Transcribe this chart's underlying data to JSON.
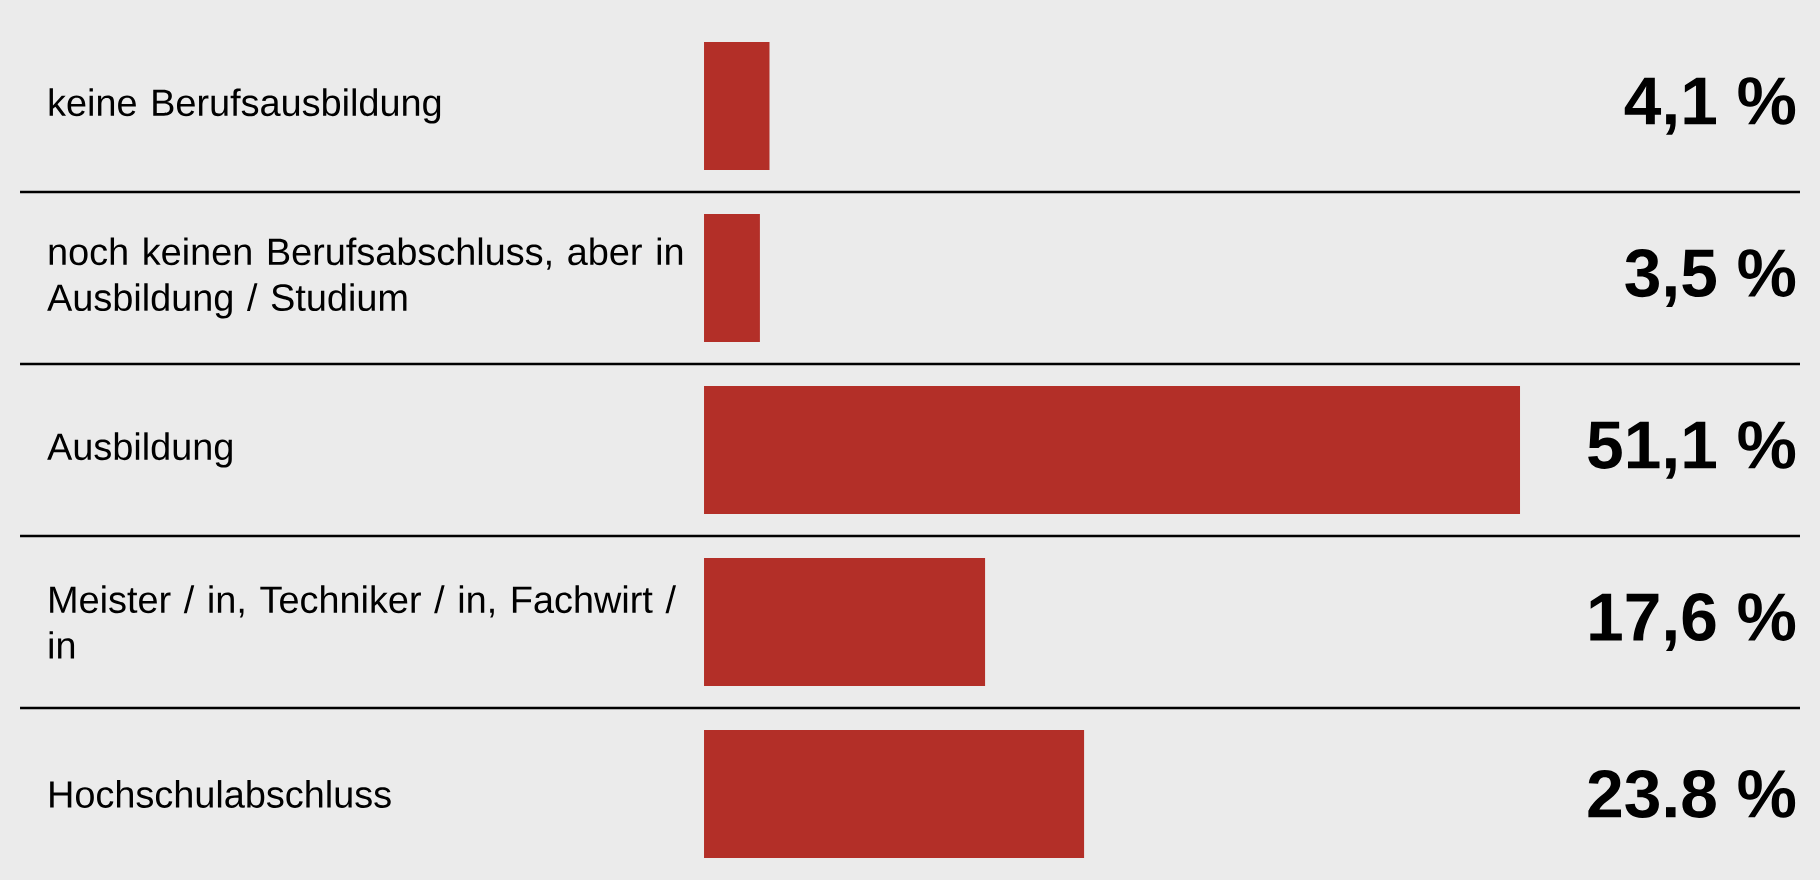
{
  "chart_data": {
    "type": "bar",
    "orientation": "horizontal",
    "categories": [
      "keine Berufsausbildung",
      "noch keinen Berufsabschluss, aber in Ausbildung / Studium",
      "Ausbildung",
      "Meister / in, Techniker / in, Fachwirt / in",
      "Hochschulabschluss"
    ],
    "values": [
      4.1,
      3.5,
      51.1,
      17.6,
      23.8
    ],
    "value_labels": [
      "4,1 %",
      "3,5 %",
      "51,1 %",
      "17,6 %",
      "23.8 %"
    ],
    "color": "#b32f28"
  }
}
